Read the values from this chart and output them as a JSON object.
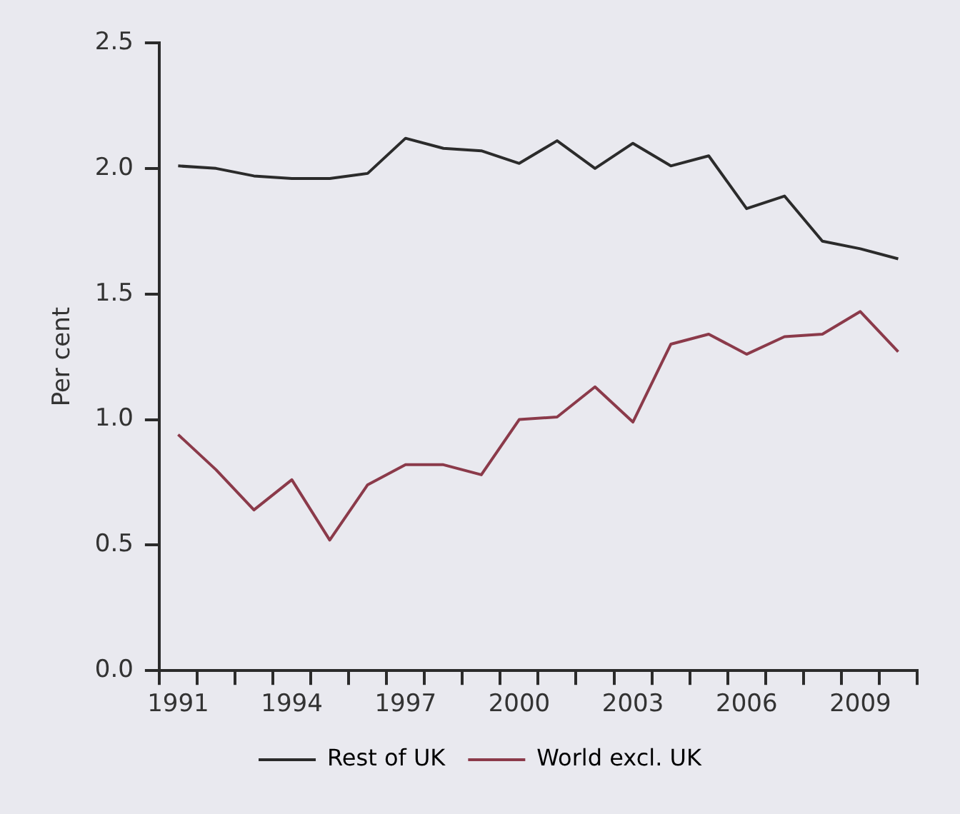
{
  "chart_data": {
    "type": "line",
    "ylabel": "Per cent",
    "categories": [
      "1991",
      null,
      null,
      "1994",
      null,
      null,
      "1997",
      null,
      null,
      "2000",
      null,
      null,
      "2003",
      null,
      null,
      "2006",
      null,
      null,
      "2009",
      null
    ],
    "series": [
      {
        "name": "Rest of UK",
        "color": "#2b2b2b",
        "values": [
          2.01,
          2.0,
          1.97,
          1.96,
          1.96,
          1.98,
          2.12,
          2.08,
          2.07,
          2.02,
          2.11,
          2.0,
          2.1,
          2.01,
          2.05,
          1.84,
          1.89,
          1.71,
          1.68,
          1.64
        ]
      },
      {
        "name": "World excl. UK",
        "color": "#8b3a4a",
        "values": [
          0.94,
          0.8,
          0.64,
          0.76,
          0.52,
          0.74,
          0.82,
          0.82,
          0.78,
          1.0,
          1.01,
          1.13,
          0.99,
          1.3,
          1.34,
          1.26,
          1.33,
          1.34,
          1.43,
          1.27
        ]
      }
    ],
    "ylim": [
      0,
      2.5
    ],
    "yticks": [
      {
        "value": 0,
        "label": "0.0"
      },
      0.5,
      {
        "value": 1,
        "label": "1.0"
      },
      1.5,
      {
        "value": 2,
        "label": "2.0"
      },
      2.5
    ],
    "grid": false,
    "legend": "bottom",
    "marker": "none",
    "line_style": "solid"
  }
}
